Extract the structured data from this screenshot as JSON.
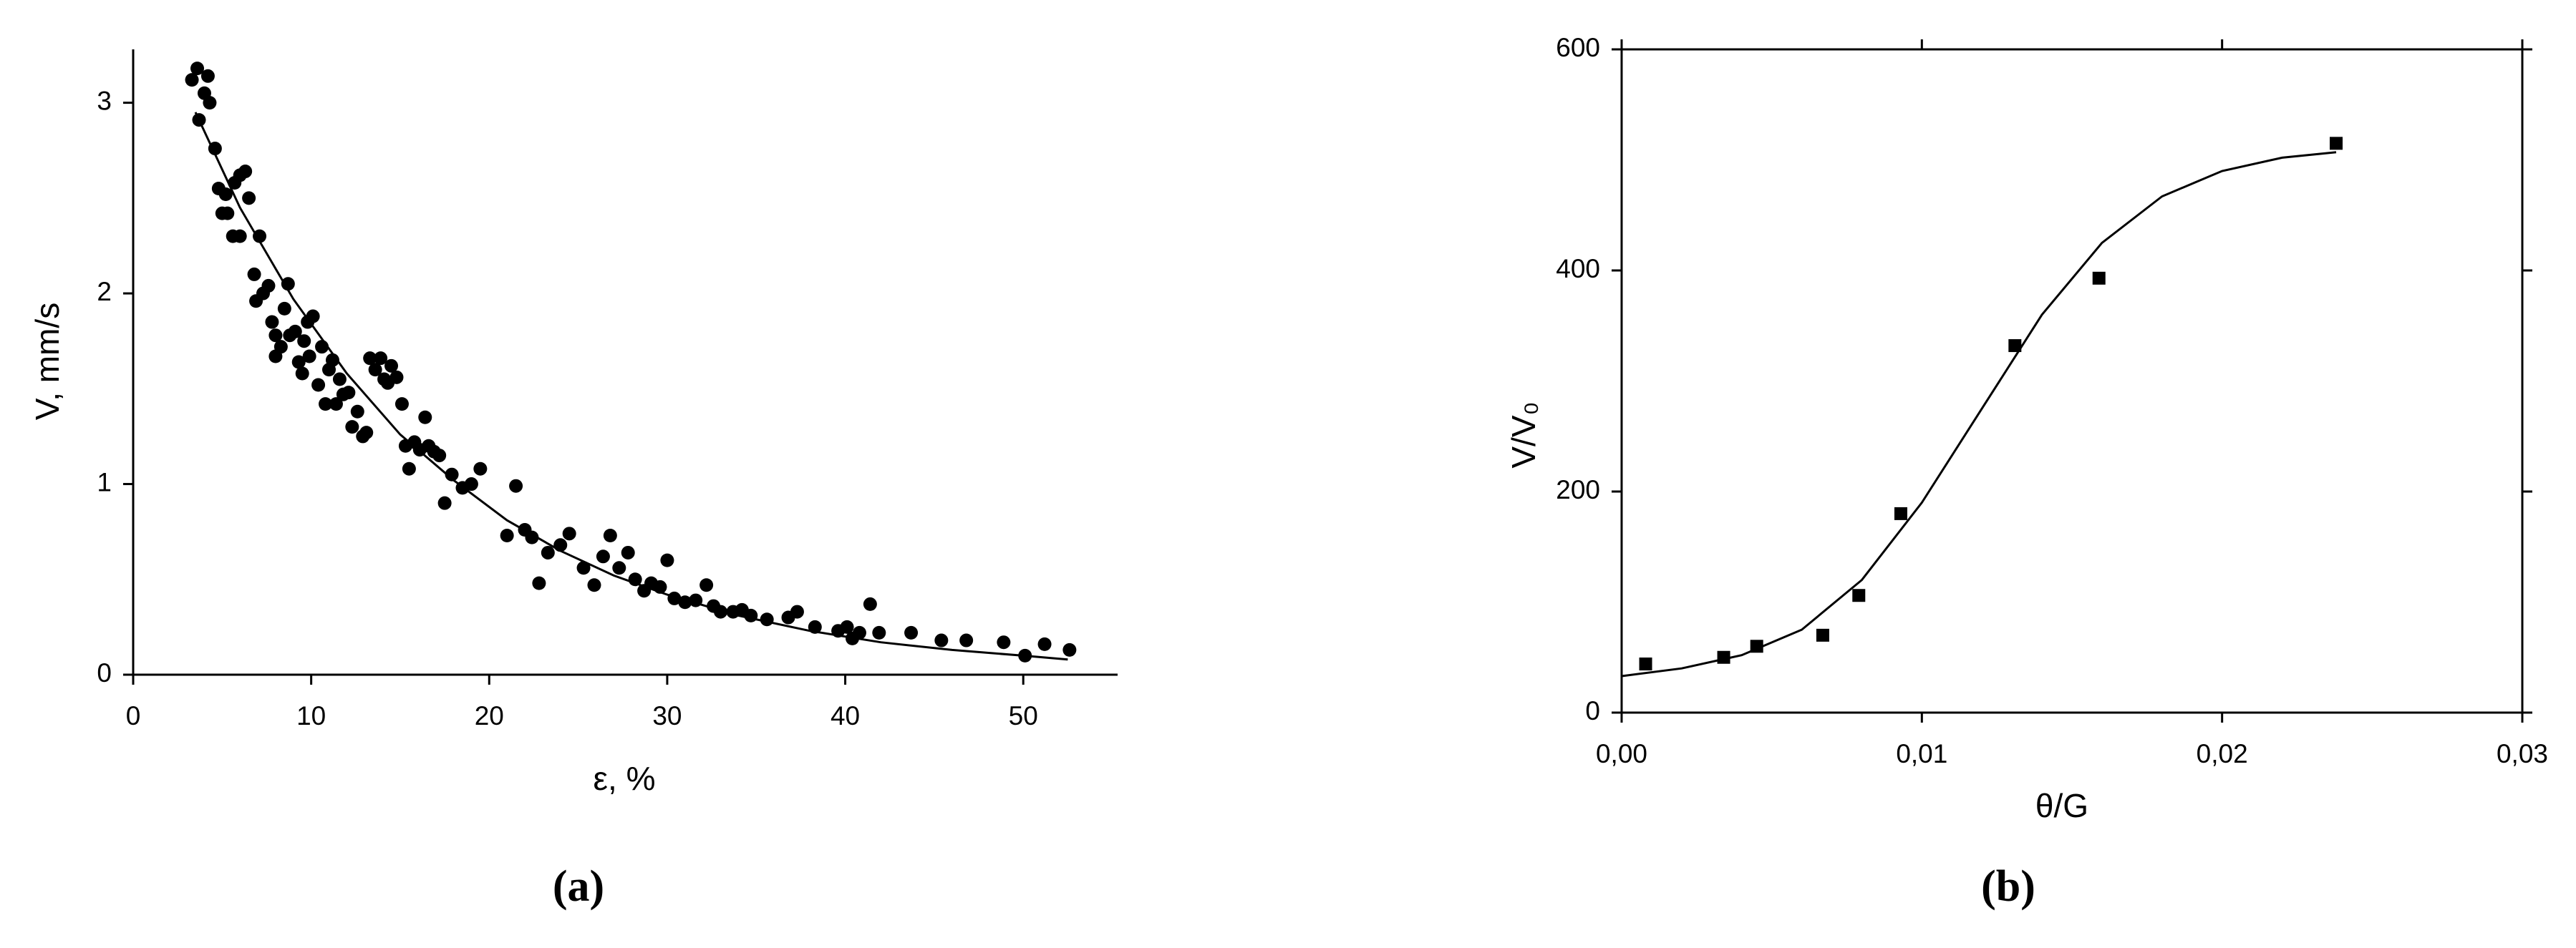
{
  "chart_data": [
    {
      "type": "scatter",
      "caption": "(a)",
      "x_label": "ε, %",
      "y_label": "V, mm/s",
      "xlim": [
        0,
        55.3
      ],
      "ylim": [
        0,
        3.28
      ],
      "xticks": [
        0,
        10,
        20,
        30,
        40,
        50
      ],
      "yticks": [
        0,
        1,
        2,
        3
      ],
      "frame": false,
      "series": [
        {
          "type": "scatter",
          "marker": "circle",
          "color": "#000000",
          "x": [
            3.3,
            3.6,
            3.7,
            4.0,
            4.2,
            4.3,
            4.6,
            4.8,
            5.0,
            5.2,
            5.3,
            5.6,
            5.7,
            6.0,
            6.3,
            6.5,
            6.0,
            6.8,
            6.9,
            7.1,
            7.3,
            7.6,
            7.8,
            8.0,
            8.0,
            8.3,
            8.5,
            8.7,
            8.8,
            9.1,
            9.3,
            9.5,
            9.6,
            9.8,
            9.9,
            10.1,
            10.4,
            10.6,
            10.8,
            11.0,
            11.2,
            11.4,
            11.6,
            11.8,
            12.1,
            12.3,
            12.6,
            12.9,
            13.1,
            13.3,
            13.6,
            13.9,
            14.1,
            14.3,
            14.5,
            14.8,
            15.1,
            15.3,
            15.5,
            15.8,
            16.1,
            16.4,
            16.6,
            16.9,
            17.2,
            17.5,
            17.9,
            18.5,
            19.0,
            19.5,
            21.0,
            21.5,
            22.0,
            22.4,
            22.8,
            23.3,
            24.0,
            24.5,
            25.3,
            25.9,
            26.4,
            26.8,
            27.3,
            27.8,
            28.2,
            28.7,
            29.1,
            29.6,
            30.0,
            30.4,
            31.0,
            31.6,
            32.2,
            32.6,
            33.0,
            33.7,
            34.2,
            34.7,
            35.6,
            36.8,
            37.3,
            38.3,
            39.6,
            40.1,
            40.4,
            40.8,
            41.4,
            41.9,
            43.7,
            45.4,
            46.8,
            48.9,
            50.1,
            51.2,
            52.6
          ],
          "values": [
            3.12,
            3.18,
            2.91,
            3.05,
            3.14,
            3.0,
            2.76,
            2.55,
            2.42,
            2.52,
            2.42,
            2.3,
            2.58,
            2.62,
            2.64,
            2.5,
            2.3,
            2.1,
            1.96,
            2.3,
            2.0,
            2.04,
            1.85,
            1.78,
            1.67,
            1.72,
            1.92,
            2.05,
            1.78,
            1.8,
            1.64,
            1.58,
            1.75,
            1.85,
            1.67,
            1.88,
            1.52,
            1.72,
            1.42,
            1.6,
            1.65,
            1.42,
            1.55,
            1.47,
            1.48,
            1.3,
            1.38,
            1.25,
            1.27,
            1.66,
            1.6,
            1.66,
            1.55,
            1.53,
            1.62,
            1.56,
            1.42,
            1.2,
            1.08,
            1.22,
            1.18,
            1.35,
            1.2,
            1.17,
            1.15,
            0.9,
            1.05,
            0.98,
            1.0,
            1.08,
            0.73,
            0.99,
            0.76,
            0.72,
            0.48,
            0.64,
            0.68,
            0.74,
            0.56,
            0.47,
            0.62,
            0.73,
            0.56,
            0.64,
            0.5,
            0.44,
            0.48,
            0.46,
            0.6,
            0.4,
            0.38,
            0.39,
            0.47,
            0.36,
            0.33,
            0.33,
            0.34,
            0.31,
            0.29,
            0.3,
            0.33,
            0.25,
            0.23,
            0.25,
            0.19,
            0.22,
            0.37,
            0.22,
            0.22,
            0.18,
            0.18,
            0.17,
            0.1,
            0.16,
            0.13
          ]
        },
        {
          "type": "line",
          "color": "#000000",
          "x": [
            3.5,
            6,
            9,
            12,
            15,
            18,
            21,
            24,
            27,
            30,
            34,
            38,
            42,
            46,
            50,
            52.5
          ],
          "values": [
            2.95,
            2.45,
            1.97,
            1.58,
            1.26,
            1.02,
            0.81,
            0.65,
            0.52,
            0.42,
            0.31,
            0.23,
            0.17,
            0.13,
            0.1,
            0.08
          ]
        }
      ]
    },
    {
      "type": "scatter",
      "caption": "(b)",
      "x_label": "θ/G",
      "y_label": "V/V₀",
      "xlim": [
        0,
        0.03
      ],
      "ylim": [
        0,
        600
      ],
      "xticks": [
        {
          "value": 0,
          "label": "0,00"
        },
        {
          "value": 0.01,
          "label": "0,01"
        },
        {
          "value": 0.02,
          "label": "0,02"
        },
        {
          "value": 0.03,
          "label": "0,03"
        }
      ],
      "yticks": [
        0,
        200,
        400,
        600
      ],
      "frame": true,
      "series": [
        {
          "type": "scatter",
          "marker": "square",
          "color": "#000000",
          "x": [
            0.0008,
            0.0034,
            0.0045,
            0.0067,
            0.0079,
            0.0093,
            0.0131,
            0.0159,
            0.0238
          ],
          "values": [
            44,
            50,
            60,
            70,
            106,
            180,
            332,
            393,
            515
          ]
        },
        {
          "type": "line",
          "color": "#000000",
          "x": [
            0,
            0.002,
            0.004,
            0.006,
            0.008,
            0.01,
            0.012,
            0.014,
            0.016,
            0.018,
            0.02,
            0.022,
            0.0238
          ],
          "values": [
            33,
            40,
            52,
            75,
            120,
            190,
            275,
            360,
            425,
            467,
            490,
            502,
            507
          ]
        }
      ]
    }
  ]
}
